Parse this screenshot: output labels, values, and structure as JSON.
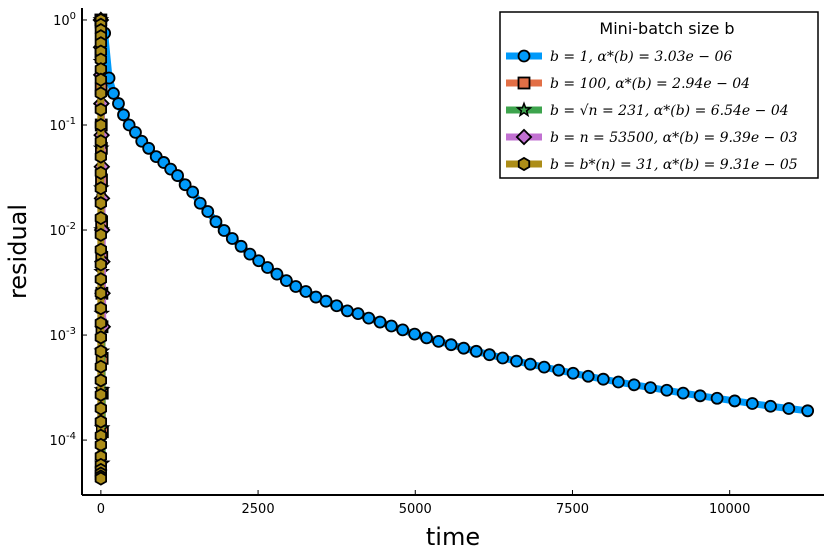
{
  "chart_data": {
    "type": "line",
    "xlabel": "time",
    "ylabel": "residual",
    "xscale": "linear",
    "yscale": "log",
    "xlim": [
      -300,
      11500
    ],
    "ylim": [
      3e-05,
      1.3
    ],
    "xticks": [
      0,
      2500,
      5000,
      7500,
      10000
    ],
    "xtick_labels": [
      "0",
      "2500",
      "5000",
      "7500",
      "10000"
    ],
    "yticks": [
      1,
      0.1,
      0.01,
      0.001,
      0.0001
    ],
    "ytick_labels": [
      {
        "base": "10",
        "exp": "0"
      },
      {
        "base": "10",
        "exp": "-1"
      },
      {
        "base": "10",
        "exp": "-2"
      },
      {
        "base": "10",
        "exp": "-3"
      },
      {
        "base": "10",
        "exp": "-4"
      }
    ],
    "grid": false,
    "legend": {
      "title": "Mini-batch size b",
      "position": "top-right"
    },
    "series": [
      {
        "name": "b = 1, α*(b) = 3.03e − 06",
        "color": "#009AFA",
        "marker": "circle",
        "x": [
          0,
          60,
          130,
          200,
          280,
          360,
          450,
          550,
          650,
          760,
          880,
          1000,
          1110,
          1220,
          1340,
          1460,
          1580,
          1700,
          1830,
          1960,
          2090,
          2230,
          2370,
          2510,
          2650,
          2800,
          2950,
          3100,
          3260,
          3420,
          3580,
          3750,
          3920,
          4090,
          4260,
          4440,
          4620,
          4800,
          4990,
          5180,
          5370,
          5570,
          5770,
          5970,
          6180,
          6390,
          6610,
          6830,
          7050,
          7280,
          7510,
          7750,
          7990,
          8230,
          8480,
          8740,
          9000,
          9260,
          9530,
          9800,
          10080,
          10360,
          10650,
          10940,
          11240
        ],
        "y": [
          1.0,
          0.75,
          0.28,
          0.2,
          0.16,
          0.125,
          0.1,
          0.085,
          0.07,
          0.06,
          0.05,
          0.044,
          0.038,
          0.033,
          0.027,
          0.023,
          0.018,
          0.015,
          0.012,
          0.0099,
          0.0083,
          0.007,
          0.0059,
          0.0051,
          0.0044,
          0.0038,
          0.0033,
          0.0029,
          0.0026,
          0.0023,
          0.0021,
          0.0019,
          0.0017,
          0.0016,
          0.00145,
          0.00133,
          0.00122,
          0.00112,
          0.00102,
          0.00094,
          0.00087,
          0.00081,
          0.00075,
          0.0007,
          0.00065,
          0.000605,
          0.000565,
          0.000528,
          0.000495,
          0.000463,
          0.000433,
          0.000405,
          0.00038,
          0.000357,
          0.000336,
          0.000316,
          0.000298,
          0.00028,
          0.000264,
          0.00025,
          0.000236,
          0.000223,
          0.00021,
          0.0002,
          0.00019
        ],
        "y_display_note": ""
      },
      {
        "name": "b = 100, α*(b) = 2.94e − 04",
        "color": "#E26F46",
        "marker": "square",
        "x": [
          0,
          2,
          4,
          6,
          8,
          10,
          12,
          14,
          16,
          18,
          20,
          22,
          24
        ],
        "y": [
          1.0,
          0.5,
          0.22,
          0.1,
          0.06,
          0.03,
          0.012,
          0.0055,
          0.0025,
          0.0012,
          0.0006,
          0.00028,
          0.00012
        ]
      },
      {
        "name": "b = √n = 231, α*(b) = 6.54e − 04",
        "color": "#3DA44D",
        "marker": "star",
        "x": [
          0,
          2,
          4,
          6,
          8,
          10,
          12,
          14,
          16,
          18,
          20,
          22
        ],
        "y": [
          1.0,
          0.4,
          0.15,
          0.06,
          0.025,
          0.01,
          0.004,
          0.0016,
          0.0007,
          0.0003,
          0.00013,
          6e-05
        ]
      },
      {
        "name": "b = n = 53500, α*(b) = 9.39e − 03",
        "color": "#C271D2",
        "marker": "diamond",
        "x": [
          0,
          3,
          6,
          9,
          12,
          15,
          18,
          21,
          24,
          27,
          30
        ],
        "y": [
          1.0,
          0.55,
          0.3,
          0.16,
          0.08,
          0.04,
          0.02,
          0.01,
          0.005,
          0.0025,
          0.0012
        ]
      },
      {
        "name": "b = b*(n) = 31, α*(b) = 9.31e − 05",
        "color": "#AC8D18",
        "marker": "hexagon",
        "x": [
          0,
          0,
          0,
          0,
          0,
          0,
          0,
          0,
          0,
          0,
          0,
          0,
          0,
          0,
          0,
          0,
          0,
          0,
          0,
          0,
          0,
          0,
          0,
          0,
          0,
          0,
          0,
          0,
          0,
          0,
          0,
          0,
          0,
          0,
          0,
          0,
          0,
          0,
          0,
          0
        ],
        "y": [
          1.0,
          0.9,
          0.8,
          0.7,
          0.6,
          0.5,
          0.42,
          0.34,
          0.27,
          0.2,
          0.14,
          0.1,
          0.07,
          0.05,
          0.035,
          0.025,
          0.018,
          0.013,
          0.009,
          0.0065,
          0.0047,
          0.0034,
          0.0025,
          0.0018,
          0.0013,
          0.00095,
          0.0007,
          0.0005,
          0.00037,
          0.00027,
          0.0002,
          0.00015,
          0.00011,
          9e-05,
          7e-05,
          5.8e-05,
          5.2e-05,
          4.8e-05,
          4.5e-05,
          4.3e-05
        ]
      }
    ],
    "legend_entries": [
      {
        "label": "b = 1, α*(b) = 3.03e − 06"
      },
      {
        "label": "b = 100, α*(b) = 2.94e − 04"
      },
      {
        "label": "b = √n = 231, α*(b) = 6.54e − 04"
      },
      {
        "label": "b = n = 53500, α*(b) = 9.39e − 03"
      },
      {
        "label": "b = b*(n) = 31, α*(b) = 9.31e − 05"
      }
    ]
  }
}
